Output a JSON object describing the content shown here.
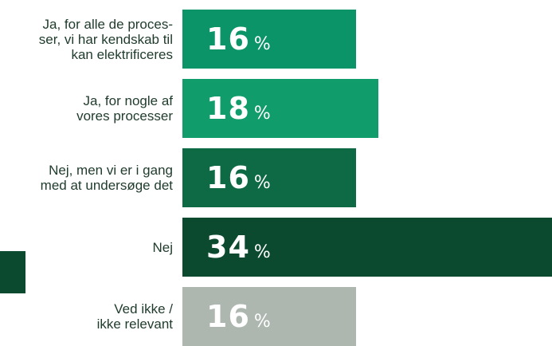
{
  "chart_data": {
    "type": "bar",
    "orientation": "horizontal",
    "categories": [
      "Ja, for alle de proces-\nser, vi har kendskab til\nkan elektrificeres",
      "Ja, for nogle af\nvores processer",
      "Nej, men vi er i gang\nmed at undersøge det",
      "Nej",
      "Ved ikke /\nikke relevant"
    ],
    "values": [
      16,
      18,
      16,
      34,
      16
    ],
    "value_labels": [
      "16",
      "18",
      "16",
      "34",
      "16"
    ],
    "unit": "%",
    "xlim": [
      0,
      34
    ],
    "bar_colors": [
      "#0a9468",
      "#119c6b",
      "#0d6a45",
      "#0b4a2f",
      "#adb7b0"
    ],
    "value_text_color": "#ffffff",
    "label_color": "#1f3b2c",
    "accent_block_color": "#0b4a2f",
    "grid": false,
    "legend": "none"
  }
}
